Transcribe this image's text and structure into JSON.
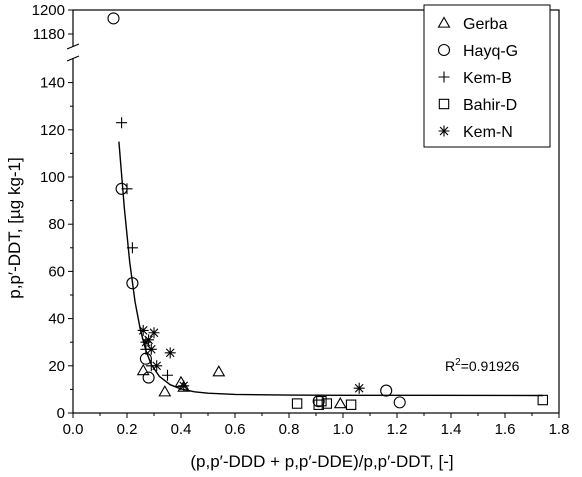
{
  "chart_data": {
    "type": "scatter",
    "xlabel": "(p,p′-DDD + p,p′-DDE)/p,p′-DDT, [-]",
    "ylabel": "p,p′-DDT, [µg kg-1]",
    "xlim": [
      0.0,
      1.8
    ],
    "ylim_lower": [
      0,
      150
    ],
    "ylim_upper": [
      1170,
      1200
    ],
    "axis_break": {
      "type": "broken-y",
      "between": [
        150,
        1170
      ]
    },
    "x_ticks": [
      "0.0",
      "0.2",
      "0.4",
      "0.6",
      "0.8",
      "1.0",
      "1.2",
      "1.4",
      "1.6",
      "1.8"
    ],
    "y_ticks_lower": [
      "0",
      "20",
      "40",
      "60",
      "80",
      "100",
      "120",
      "140"
    ],
    "y_ticks_upper": [
      "1180",
      "1200"
    ],
    "legend_position": "top-right",
    "series": [
      {
        "name": "Gerba",
        "marker": "triangle",
        "points": [
          [
            0.26,
            18
          ],
          [
            0.34,
            9
          ],
          [
            0.4,
            13
          ],
          [
            0.41,
            11
          ],
          [
            0.54,
            17.5
          ],
          [
            0.99,
            4
          ]
        ]
      },
      {
        "name": "Hayq-G",
        "marker": "circle",
        "points": [
          [
            0.15,
            1193
          ],
          [
            0.18,
            95
          ],
          [
            0.22,
            55
          ],
          [
            0.27,
            23
          ],
          [
            0.28,
            15
          ],
          [
            0.91,
            5
          ],
          [
            1.16,
            9.5
          ],
          [
            1.21,
            4.5
          ]
        ]
      },
      {
        "name": "Kem-B",
        "marker": "plus",
        "points": [
          [
            0.18,
            123
          ],
          [
            0.2,
            95
          ],
          [
            0.22,
            70
          ],
          [
            0.27,
            27
          ],
          [
            0.29,
            20
          ],
          [
            0.35,
            16
          ]
        ]
      },
      {
        "name": "Bahir-D",
        "marker": "square",
        "points": [
          [
            0.83,
            4
          ],
          [
            0.91,
            3.5
          ],
          [
            0.92,
            5
          ],
          [
            0.94,
            4
          ],
          [
            1.03,
            3.5
          ],
          [
            1.74,
            5.5
          ]
        ]
      },
      {
        "name": "Kem-N",
        "marker": "asterisk",
        "points": [
          [
            0.26,
            35
          ],
          [
            0.27,
            30
          ],
          [
            0.28,
            31
          ],
          [
            0.29,
            27
          ],
          [
            0.3,
            34
          ],
          [
            0.31,
            20
          ],
          [
            0.36,
            25.5
          ],
          [
            0.41,
            11.5
          ],
          [
            1.06,
            10.5
          ]
        ]
      }
    ],
    "fit_curve": {
      "type": "power",
      "points": [
        [
          0.17,
          115
        ],
        [
          0.19,
          87
        ],
        [
          0.21,
          64
        ],
        [
          0.23,
          47
        ],
        [
          0.25,
          35
        ],
        [
          0.27,
          26.5
        ],
        [
          0.29,
          20.5
        ],
        [
          0.32,
          15.5
        ],
        [
          0.36,
          12
        ],
        [
          0.4,
          10.2
        ],
        [
          0.45,
          9
        ],
        [
          0.5,
          8.4
        ],
        [
          0.6,
          7.9
        ],
        [
          0.8,
          7.6
        ],
        [
          1.0,
          7.5
        ],
        [
          1.3,
          7.5
        ],
        [
          1.74,
          7.4
        ]
      ]
    },
    "annotation": {
      "label": "R",
      "sup": "2",
      "value": "=0.91926"
    }
  }
}
